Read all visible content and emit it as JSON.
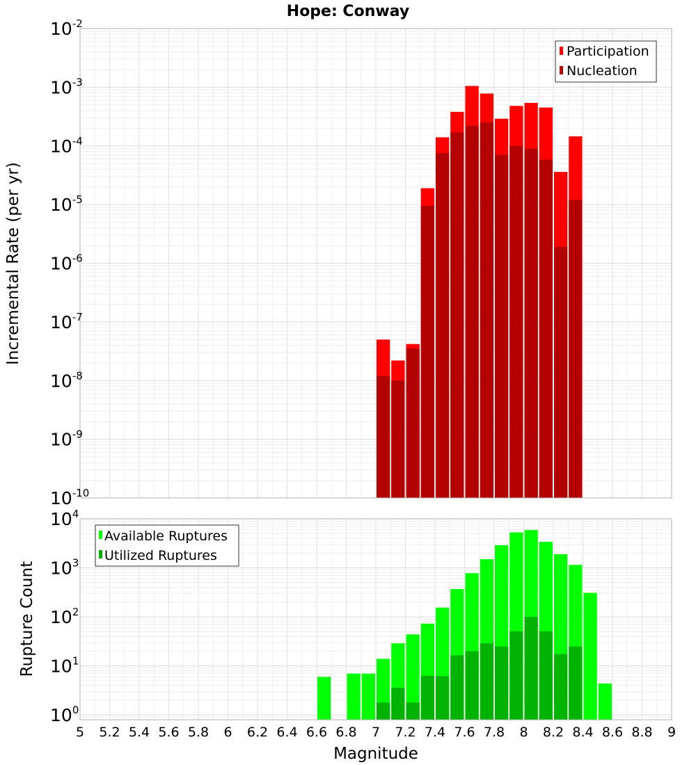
{
  "chart_data": [
    {
      "type": "bar",
      "title": "Hope: Conway",
      "xlabel": "",
      "ylabel": "Incremental Rate (per yr)",
      "yscale": "log",
      "xlim": [
        5,
        9
      ],
      "ylim": [
        1e-10,
        0.01
      ],
      "grid": true,
      "legend_position": "top-right",
      "x": [
        7.05,
        7.15,
        7.25,
        7.35,
        7.45,
        7.55,
        7.65,
        7.75,
        7.85,
        7.95,
        8.05,
        8.15,
        8.25,
        8.35
      ],
      "series": [
        {
          "name": "Participation",
          "color": "#ff0000",
          "values": [
            5e-08,
            2.2e-08,
            4.2e-08,
            1.9e-05,
            0.00014,
            0.00038,
            0.00105,
            0.00078,
            0.00029,
            0.00048,
            0.00054,
            0.00045,
            3.6e-05,
            0.000145
          ]
        },
        {
          "name": "Nucleation",
          "color": "#b30000",
          "values": [
            1.2e-08,
            1e-08,
            3.5e-08,
            9.5e-06,
            7.5e-05,
            0.00017,
            0.00022,
            0.00025,
            7e-05,
            0.0001,
            9e-05,
            5.8e-05,
            1.9e-06,
            1.2e-05
          ]
        }
      ],
      "y_ticks": [
        "10^-10",
        "10^-9",
        "10^-8",
        "10^-7",
        "10^-6",
        "10^-5",
        "10^-4",
        "10^-3",
        "10^-2"
      ]
    },
    {
      "type": "bar",
      "title": "",
      "xlabel": "Magnitude",
      "ylabel": "Rupture Count",
      "yscale": "log",
      "xlim": [
        5,
        9
      ],
      "ylim": [
        0.8,
        10000
      ],
      "grid": true,
      "legend_position": "top-left",
      "x": [
        6.65,
        6.75,
        6.85,
        6.95,
        7.05,
        7.15,
        7.25,
        7.35,
        7.45,
        7.55,
        7.65,
        7.75,
        7.85,
        7.95,
        8.05,
        8.15,
        8.25,
        8.35,
        8.45,
        8.55
      ],
      "series": [
        {
          "name": "Available Ruptures",
          "color": "#00ff00",
          "values": [
            6,
            null,
            7,
            7,
            14,
            29,
            44,
            73,
            155,
            370,
            780,
            1500,
            2900,
            5300,
            5900,
            3400,
            1900,
            1150,
            310,
            4.4
          ]
        },
        {
          "name": "Utilized Ruptures",
          "color": "#00b300",
          "values": [
            null,
            null,
            null,
            null,
            1.8,
            3.6,
            1.8,
            6.3,
            6.2,
            16.5,
            20,
            29,
            25,
            51,
            100,
            51,
            17.5,
            25,
            null,
            null
          ]
        }
      ],
      "y_ticks": [
        "10^0",
        "10^1",
        "10^2",
        "10^3",
        "10^4"
      ]
    }
  ],
  "x_ticks": [
    "5",
    "5.2",
    "5.4",
    "5.6",
    "5.8",
    "6",
    "6.2",
    "6.4",
    "6.6",
    "6.8",
    "7",
    "7.2",
    "7.4",
    "7.6",
    "7.8",
    "8",
    "8.2",
    "8.4",
    "8.6",
    "8.8",
    "9"
  ]
}
